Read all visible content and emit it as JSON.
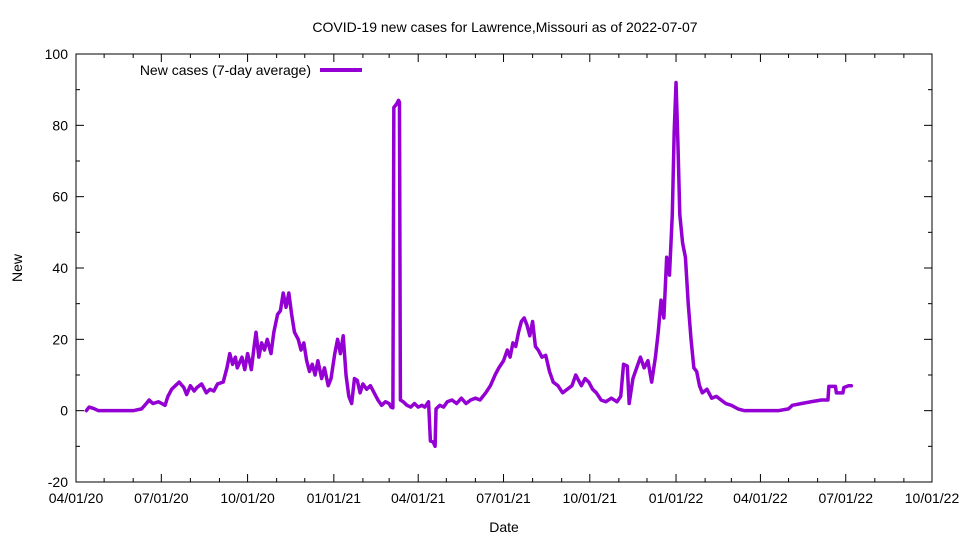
{
  "chart_data": {
    "type": "line",
    "title": "COVID-19 new cases for Lawrence,Missouri as of 2022-07-07",
    "xlabel": "Date",
    "ylabel": "New",
    "x_type": "date",
    "xlim": [
      "2020-04-01",
      "2022-10-01"
    ],
    "ylim": [
      -20,
      100
    ],
    "x_ticks": [
      {
        "date": "2020-04-01",
        "label": "04/01/20"
      },
      {
        "date": "2020-07-01",
        "label": "07/01/20"
      },
      {
        "date": "2020-10-01",
        "label": "10/01/20"
      },
      {
        "date": "2021-01-01",
        "label": "01/01/21"
      },
      {
        "date": "2021-04-01",
        "label": "04/01/21"
      },
      {
        "date": "2021-07-01",
        "label": "07/01/21"
      },
      {
        "date": "2021-10-01",
        "label": "10/01/21"
      },
      {
        "date": "2022-01-01",
        "label": "01/01/22"
      },
      {
        "date": "2022-04-01",
        "label": "04/01/22"
      },
      {
        "date": "2022-07-01",
        "label": "07/01/22"
      },
      {
        "date": "2022-10-01",
        "label": "10/01/22"
      }
    ],
    "y_ticks": [
      -20,
      0,
      20,
      40,
      60,
      80,
      100
    ],
    "grid": false,
    "legend": {
      "position": "top-left"
    },
    "series": [
      {
        "name": "New cases (7-day average)",
        "color": "#9400d3",
        "points": [
          [
            "2020-04-12",
            0
          ],
          [
            "2020-04-15",
            1
          ],
          [
            "2020-04-20",
            0.6
          ],
          [
            "2020-04-25",
            0
          ],
          [
            "2020-05-15",
            0
          ],
          [
            "2020-06-01",
            0
          ],
          [
            "2020-06-10",
            0.5
          ],
          [
            "2020-06-15",
            2
          ],
          [
            "2020-06-18",
            3
          ],
          [
            "2020-06-22",
            2
          ],
          [
            "2020-06-28",
            2.5
          ],
          [
            "2020-07-05",
            1.5
          ],
          [
            "2020-07-08",
            4
          ],
          [
            "2020-07-12",
            6
          ],
          [
            "2020-07-16",
            7
          ],
          [
            "2020-07-20",
            8
          ],
          [
            "2020-07-25",
            6.5
          ],
          [
            "2020-07-28",
            4.5
          ],
          [
            "2020-08-01",
            7
          ],
          [
            "2020-08-05",
            5.5
          ],
          [
            "2020-08-08",
            6.5
          ],
          [
            "2020-08-13",
            7.5
          ],
          [
            "2020-08-18",
            5
          ],
          [
            "2020-08-22",
            6
          ],
          [
            "2020-08-26",
            5.5
          ],
          [
            "2020-08-30",
            7.5
          ],
          [
            "2020-09-05",
            8
          ],
          [
            "2020-09-09",
            12
          ],
          [
            "2020-09-12",
            16
          ],
          [
            "2020-09-15",
            13
          ],
          [
            "2020-09-18",
            15
          ],
          [
            "2020-09-20",
            12
          ],
          [
            "2020-09-25",
            15
          ],
          [
            "2020-09-28",
            11.5
          ],
          [
            "2020-10-01",
            16
          ],
          [
            "2020-10-03",
            14
          ],
          [
            "2020-10-05",
            11.5
          ],
          [
            "2020-10-08",
            18
          ],
          [
            "2020-10-10",
            22
          ],
          [
            "2020-10-13",
            15
          ],
          [
            "2020-10-16",
            19
          ],
          [
            "2020-10-19",
            17
          ],
          [
            "2020-10-22",
            20
          ],
          [
            "2020-10-26",
            16
          ],
          [
            "2020-10-29",
            22
          ],
          [
            "2020-11-02",
            27
          ],
          [
            "2020-11-05",
            28
          ],
          [
            "2020-11-08",
            33
          ],
          [
            "2020-11-11",
            29
          ],
          [
            "2020-11-14",
            33
          ],
          [
            "2020-11-17",
            27
          ],
          [
            "2020-11-20",
            22
          ],
          [
            "2020-11-24",
            20
          ],
          [
            "2020-11-27",
            17
          ],
          [
            "2020-11-30",
            19
          ],
          [
            "2020-12-03",
            14
          ],
          [
            "2020-12-06",
            11
          ],
          [
            "2020-12-09",
            13
          ],
          [
            "2020-12-12",
            10
          ],
          [
            "2020-12-15",
            14
          ],
          [
            "2020-12-19",
            9
          ],
          [
            "2020-12-22",
            12
          ],
          [
            "2020-12-26",
            7
          ],
          [
            "2020-12-29",
            9
          ],
          [
            "2021-01-02",
            16
          ],
          [
            "2021-01-05",
            20
          ],
          [
            "2021-01-08",
            16
          ],
          [
            "2021-01-11",
            21
          ],
          [
            "2021-01-14",
            10
          ],
          [
            "2021-01-17",
            4
          ],
          [
            "2021-01-20",
            2
          ],
          [
            "2021-01-23",
            9
          ],
          [
            "2021-01-26",
            8.5
          ],
          [
            "2021-01-29",
            5
          ],
          [
            "2021-02-01",
            7.5
          ],
          [
            "2021-02-05",
            6
          ],
          [
            "2021-02-09",
            7
          ],
          [
            "2021-02-13",
            5
          ],
          [
            "2021-02-17",
            3
          ],
          [
            "2021-02-21",
            1.5
          ],
          [
            "2021-02-25",
            2.5
          ],
          [
            "2021-03-01",
            2
          ],
          [
            "2021-03-03",
            1
          ],
          [
            "2021-03-05",
            0.8
          ],
          [
            "2021-03-06",
            85
          ],
          [
            "2021-03-09",
            86
          ],
          [
            "2021-03-11",
            87
          ],
          [
            "2021-03-12",
            86.5
          ],
          [
            "2021-03-13",
            3
          ],
          [
            "2021-03-16",
            2.5
          ],
          [
            "2021-03-20",
            1.5
          ],
          [
            "2021-03-24",
            1
          ],
          [
            "2021-03-28",
            2
          ],
          [
            "2021-04-01",
            1
          ],
          [
            "2021-04-05",
            1.5
          ],
          [
            "2021-04-08",
            1
          ],
          [
            "2021-04-12",
            2.5
          ],
          [
            "2021-04-14",
            -8.5
          ],
          [
            "2021-04-17",
            -8.8
          ],
          [
            "2021-04-19",
            -10
          ],
          [
            "2021-04-20",
            0.5
          ],
          [
            "2021-04-24",
            1.5
          ],
          [
            "2021-04-28",
            1
          ],
          [
            "2021-05-02",
            2.5
          ],
          [
            "2021-05-07",
            3
          ],
          [
            "2021-05-12",
            2
          ],
          [
            "2021-05-17",
            3.5
          ],
          [
            "2021-05-22",
            2
          ],
          [
            "2021-05-27",
            3
          ],
          [
            "2021-06-01",
            3.5
          ],
          [
            "2021-06-06",
            3
          ],
          [
            "2021-06-12",
            5
          ],
          [
            "2021-06-17",
            7
          ],
          [
            "2021-06-22",
            10
          ],
          [
            "2021-06-26",
            12
          ],
          [
            "2021-07-01",
            14
          ],
          [
            "2021-07-05",
            17
          ],
          [
            "2021-07-08",
            15
          ],
          [
            "2021-07-11",
            19
          ],
          [
            "2021-07-14",
            18
          ],
          [
            "2021-07-17",
            22
          ],
          [
            "2021-07-20",
            25
          ],
          [
            "2021-07-23",
            26
          ],
          [
            "2021-07-26",
            24
          ],
          [
            "2021-07-29",
            21
          ],
          [
            "2021-08-01",
            25
          ],
          [
            "2021-08-04",
            18
          ],
          [
            "2021-08-07",
            17
          ],
          [
            "2021-08-11",
            15
          ],
          [
            "2021-08-15",
            15.5
          ],
          [
            "2021-08-19",
            11
          ],
          [
            "2021-08-23",
            8
          ],
          [
            "2021-08-28",
            7
          ],
          [
            "2021-09-02",
            5
          ],
          [
            "2021-09-07",
            6
          ],
          [
            "2021-09-12",
            7
          ],
          [
            "2021-09-16",
            10
          ],
          [
            "2021-09-19",
            8.5
          ],
          [
            "2021-09-22",
            7
          ],
          [
            "2021-09-26",
            9
          ],
          [
            "2021-09-30",
            8
          ],
          [
            "2021-10-04",
            6
          ],
          [
            "2021-10-08",
            5
          ],
          [
            "2021-10-13",
            3
          ],
          [
            "2021-10-18",
            2.5
          ],
          [
            "2021-10-24",
            3.5
          ],
          [
            "2021-10-30",
            2.5
          ],
          [
            "2021-11-03",
            4
          ],
          [
            "2021-11-06",
            13
          ],
          [
            "2021-11-10",
            12.5
          ],
          [
            "2021-11-12",
            2
          ],
          [
            "2021-11-16",
            9
          ],
          [
            "2021-11-20",
            12
          ],
          [
            "2021-11-24",
            15
          ],
          [
            "2021-11-28",
            12
          ],
          [
            "2021-12-02",
            14
          ],
          [
            "2021-12-06",
            8
          ],
          [
            "2021-12-10",
            15
          ],
          [
            "2021-12-13",
            22
          ],
          [
            "2021-12-16",
            31
          ],
          [
            "2021-12-19",
            26
          ],
          [
            "2021-12-22",
            43
          ],
          [
            "2021-12-25",
            38
          ],
          [
            "2021-12-28",
            55
          ],
          [
            "2021-12-30",
            78
          ],
          [
            "2022-01-01",
            92
          ],
          [
            "2022-01-03",
            75
          ],
          [
            "2022-01-05",
            55
          ],
          [
            "2022-01-08",
            47
          ],
          [
            "2022-01-11",
            43
          ],
          [
            "2022-01-14",
            30
          ],
          [
            "2022-01-17",
            20
          ],
          [
            "2022-01-20",
            12
          ],
          [
            "2022-01-23",
            11
          ],
          [
            "2022-01-26",
            7
          ],
          [
            "2022-01-29",
            5
          ],
          [
            "2022-02-03",
            6
          ],
          [
            "2022-02-08",
            3.5
          ],
          [
            "2022-02-13",
            4
          ],
          [
            "2022-02-18",
            3
          ],
          [
            "2022-02-23",
            2
          ],
          [
            "2022-03-01",
            1.5
          ],
          [
            "2022-03-08",
            0.5
          ],
          [
            "2022-03-15",
            0
          ],
          [
            "2022-04-10",
            0
          ],
          [
            "2022-04-20",
            0
          ],
          [
            "2022-05-01",
            0.5
          ],
          [
            "2022-05-05",
            1.5
          ],
          [
            "2022-05-15",
            2
          ],
          [
            "2022-05-25",
            2.5
          ],
          [
            "2022-06-05",
            3
          ],
          [
            "2022-06-12",
            3
          ],
          [
            "2022-06-13",
            6.8
          ],
          [
            "2022-06-20",
            6.8
          ],
          [
            "2022-06-21",
            5
          ],
          [
            "2022-06-28",
            5
          ],
          [
            "2022-06-29",
            6.5
          ],
          [
            "2022-07-04",
            7
          ],
          [
            "2022-07-07",
            7
          ]
        ]
      }
    ]
  }
}
